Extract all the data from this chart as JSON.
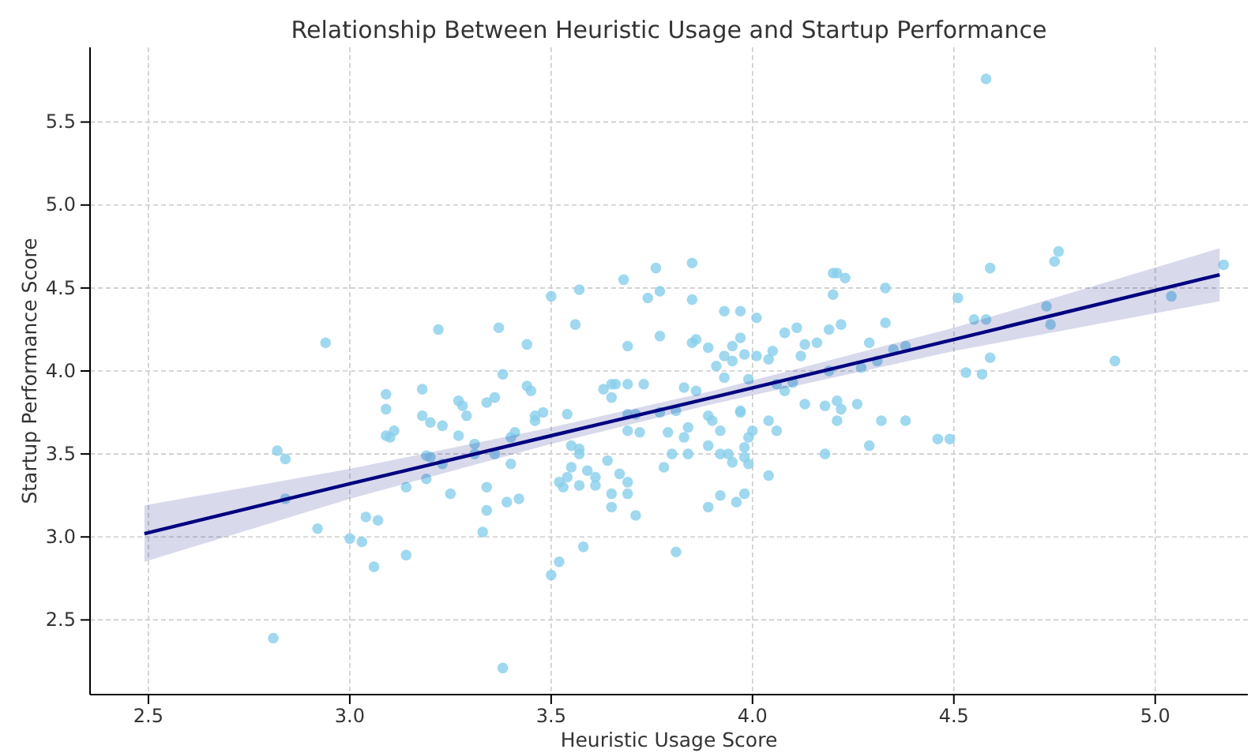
{
  "chart_data": {
    "type": "scatter",
    "title": "Relationship Between Heuristic Usage and Startup Performance",
    "xlabel": "Heuristic Usage Score",
    "ylabel": "Startup Performance Score",
    "xlim": [
      2.355,
      5.23
    ],
    "ylim": [
      2.05,
      5.95
    ],
    "xticks": [
      2.5,
      {
        "value": 3,
        "label": "3.0"
      },
      3.5,
      {
        "value": 4,
        "label": "4.0"
      },
      4.5,
      {
        "value": 5,
        "label": "5.0"
      }
    ],
    "yticks": [
      2.5,
      {
        "value": 3,
        "label": "3.0"
      },
      3.5,
      {
        "value": 4,
        "label": "4.0"
      },
      4.5,
      {
        "value": 5,
        "label": "5.0"
      },
      5.5
    ],
    "grid": true,
    "marker": "circle",
    "series": [
      {
        "color": "#87ceeb",
        "x": [
          2.81,
          2.82,
          2.84,
          2.84,
          2.94,
          2.92,
          3.0,
          3.03,
          3.04,
          3.07,
          3.06,
          3.14,
          3.09,
          3.09,
          3.09,
          3.1,
          3.11,
          3.22,
          3.18,
          3.18,
          3.2,
          3.23,
          3.27,
          3.28,
          3.29,
          3.27,
          3.19,
          3.2,
          3.23,
          3.19,
          3.14,
          3.25,
          3.31,
          3.31,
          3.34,
          3.34,
          3.34,
          3.33,
          3.37,
          3.44,
          3.38,
          3.36,
          3.44,
          3.45,
          3.46,
          3.48,
          3.46,
          3.54,
          3.5,
          3.57,
          3.56,
          3.68,
          3.76,
          3.85,
          3.74,
          3.77,
          3.85,
          3.69,
          3.77,
          3.85,
          3.86,
          3.89,
          3.93,
          3.97,
          4.01,
          3.97,
          3.95,
          3.93,
          3.95,
          3.98,
          4.01,
          3.91,
          3.93,
          3.99,
          3.63,
          3.65,
          3.66,
          3.65,
          3.69,
          3.73,
          3.83,
          3.86,
          3.69,
          3.71,
          3.69,
          3.72,
          3.77,
          3.81,
          3.79,
          3.84,
          3.83,
          3.89,
          3.9,
          3.92,
          3.97,
          3.97,
          4.0,
          3.99,
          3.89,
          3.92,
          3.94,
          3.95,
          3.98,
          3.98,
          3.99,
          3.78,
          3.8,
          3.84,
          3.36,
          3.4,
          3.41,
          3.4,
          3.39,
          3.42,
          3.55,
          3.57,
          3.57,
          3.55,
          3.54,
          3.52,
          3.53,
          3.57,
          3.59,
          3.61,
          3.61,
          3.64,
          3.67,
          3.69,
          3.65,
          3.69,
          3.65,
          3.71,
          3.89,
          3.92,
          3.96,
          3.98,
          3.58,
          3.52,
          3.5,
          3.81,
          3.38,
          4.2,
          4.21,
          4.23,
          4.2,
          4.33,
          4.59,
          4.51,
          4.08,
          4.11,
          4.19,
          4.22,
          4.33,
          4.13,
          4.16,
          4.29,
          4.35,
          4.38,
          4.05,
          4.04,
          4.12,
          4.55,
          4.58,
          4.59,
          4.53,
          4.57,
          4.06,
          4.08,
          4.1,
          4.19,
          4.27,
          4.31,
          4.13,
          4.18,
          4.21,
          4.22,
          4.26,
          4.21,
          4.32,
          4.38,
          4.29,
          4.18,
          4.46,
          4.49,
          4.04,
          4.06,
          4.04,
          4.58,
          4.76,
          4.75,
          4.73,
          4.74,
          4.9,
          5.04,
          5.17
        ],
        "values": [
          2.39,
          3.52,
          3.47,
          3.23,
          4.17,
          3.05,
          2.99,
          2.97,
          3.12,
          3.1,
          2.82,
          2.89,
          3.86,
          3.77,
          3.61,
          3.6,
          3.64,
          4.25,
          3.89,
          3.73,
          3.69,
          3.67,
          3.82,
          3.79,
          3.73,
          3.61,
          3.49,
          3.48,
          3.44,
          3.35,
          3.3,
          3.26,
          3.56,
          3.5,
          3.81,
          3.3,
          3.16,
          3.03,
          4.26,
          4.16,
          3.98,
          3.84,
          3.91,
          3.88,
          3.73,
          3.75,
          3.7,
          3.74,
          4.45,
          4.49,
          4.28,
          4.55,
          4.62,
          4.65,
          4.44,
          4.48,
          4.43,
          4.15,
          4.21,
          4.17,
          4.19,
          4.14,
          4.36,
          4.36,
          4.32,
          4.2,
          4.15,
          4.09,
          4.06,
          4.1,
          4.09,
          4.03,
          3.96,
          3.95,
          3.89,
          3.92,
          3.92,
          3.84,
          3.92,
          3.92,
          3.9,
          3.88,
          3.74,
          3.74,
          3.64,
          3.63,
          3.75,
          3.76,
          3.63,
          3.66,
          3.6,
          3.73,
          3.7,
          3.64,
          3.76,
          3.75,
          3.64,
          3.6,
          3.55,
          3.5,
          3.5,
          3.45,
          3.54,
          3.48,
          3.44,
          3.42,
          3.5,
          3.5,
          3.5,
          3.6,
          3.63,
          3.44,
          3.21,
          3.23,
          3.55,
          3.53,
          3.5,
          3.42,
          3.36,
          3.33,
          3.3,
          3.31,
          3.4,
          3.36,
          3.31,
          3.46,
          3.38,
          3.33,
          3.26,
          3.26,
          3.18,
          3.13,
          3.18,
          3.25,
          3.21,
          3.26,
          2.94,
          2.85,
          2.77,
          2.91,
          2.21,
          4.59,
          4.59,
          4.56,
          4.46,
          4.5,
          4.62,
          4.44,
          4.23,
          4.26,
          4.25,
          4.28,
          4.29,
          4.16,
          4.17,
          4.17,
          4.13,
          4.15,
          4.12,
          4.07,
          4.09,
          4.31,
          4.31,
          4.08,
          3.99,
          3.98,
          3.92,
          3.88,
          3.93,
          4.0,
          4.02,
          4.06,
          3.8,
          3.79,
          3.82,
          3.77,
          3.8,
          3.7,
          3.7,
          3.7,
          3.55,
          3.5,
          3.59,
          3.59,
          3.7,
          3.64,
          3.37,
          5.76,
          4.72,
          4.66,
          4.39,
          4.28,
          4.06,
          4.45,
          4.64
        ]
      },
      {
        "type": "line",
        "color": "#000080",
        "marker": "none",
        "line_style": "solid",
        "x": [
          2.49,
          3.0,
          3.5,
          3.9,
          4.5,
          5.16
        ],
        "values": [
          3.02,
          3.32,
          3.61,
          3.84,
          4.19,
          4.58
        ],
        "lower": [
          2.85,
          3.23,
          3.56,
          3.8,
          4.12,
          4.42
        ],
        "upper": [
          3.19,
          3.41,
          3.66,
          3.88,
          4.26,
          4.74
        ]
      }
    ]
  }
}
